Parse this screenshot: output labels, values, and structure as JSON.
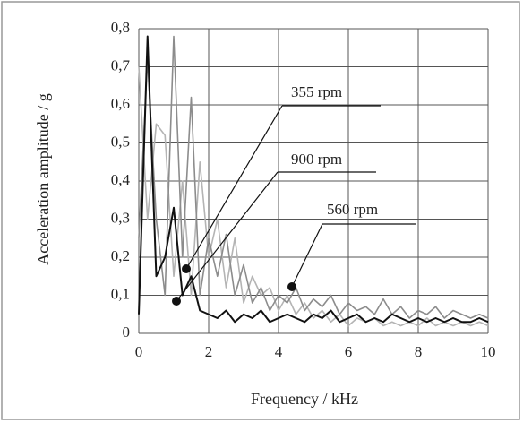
{
  "chart_data": {
    "type": "line",
    "x_label": "Frequency / kHz",
    "y_label": "Acceleration amplitude / g",
    "x": [
      0,
      0.25,
      0.5,
      0.75,
      1,
      1.25,
      1.5,
      1.75,
      2,
      2.25,
      2.5,
      2.75,
      3,
      3.25,
      3.5,
      3.75,
      4,
      4.25,
      4.5,
      4.75,
      5,
      5.25,
      5.5,
      5.75,
      6,
      6.25,
      6.5,
      6.75,
      7,
      7.25,
      7.5,
      7.75,
      8,
      8.25,
      8.5,
      8.75,
      9,
      9.25,
      9.5,
      9.75,
      10
    ],
    "series": [
      {
        "name": "355 rpm",
        "color": "#8c8c8c",
        "values": [
          0.25,
          0.72,
          0.3,
          0.1,
          0.78,
          0.2,
          0.62,
          0.1,
          0.25,
          0.15,
          0.26,
          0.1,
          0.18,
          0.08,
          0.12,
          0.06,
          0.1,
          0.08,
          0.12,
          0.06,
          0.09,
          0.07,
          0.1,
          0.05,
          0.08,
          0.06,
          0.07,
          0.05,
          0.09,
          0.05,
          0.07,
          0.04,
          0.06,
          0.05,
          0.07,
          0.04,
          0.06,
          0.05,
          0.04,
          0.05,
          0.04
        ]
      },
      {
        "name": "900 rpm",
        "color": "#111111",
        "values": [
          0.05,
          0.78,
          0.15,
          0.2,
          0.33,
          0.1,
          0.15,
          0.06,
          0.05,
          0.04,
          0.06,
          0.03,
          0.05,
          0.04,
          0.06,
          0.03,
          0.04,
          0.05,
          0.04,
          0.03,
          0.05,
          0.04,
          0.06,
          0.03,
          0.04,
          0.05,
          0.03,
          0.04,
          0.03,
          0.05,
          0.04,
          0.03,
          0.04,
          0.03,
          0.04,
          0.03,
          0.04,
          0.03,
          0.03,
          0.04,
          0.03
        ]
      },
      {
        "name": "560 rpm",
        "color": "#b4b4b4",
        "values": [
          0.7,
          0.3,
          0.55,
          0.52,
          0.15,
          0.4,
          0.1,
          0.45,
          0.2,
          0.3,
          0.12,
          0.25,
          0.08,
          0.15,
          0.1,
          0.12,
          0.06,
          0.1,
          0.05,
          0.08,
          0.04,
          0.06,
          0.03,
          0.05,
          0.02,
          0.04,
          0.03,
          0.04,
          0.02,
          0.03,
          0.02,
          0.03,
          0.02,
          0.04,
          0.02,
          0.03,
          0.02,
          0.03,
          0.02,
          0.03,
          0.02
        ]
      }
    ],
    "xlim": [
      0,
      10
    ],
    "xticks": [
      0,
      2,
      4,
      6,
      8,
      10
    ],
    "ylim": [
      0,
      0.8
    ],
    "yticks": [
      0,
      {
        "value": 0.1,
        "label": "0,1"
      },
      {
        "value": 0.2,
        "label": "0,2"
      },
      {
        "value": 0.3,
        "label": "0,3"
      },
      {
        "value": 0.4,
        "label": "0,4"
      },
      {
        "value": 0.5,
        "label": "0,5"
      },
      {
        "value": 0.6,
        "label": "0,6"
      },
      {
        "value": 0.7,
        "label": "0,7"
      },
      {
        "value": 0.8,
        "label": "0,8"
      }
    ],
    "grid": true
  }
}
